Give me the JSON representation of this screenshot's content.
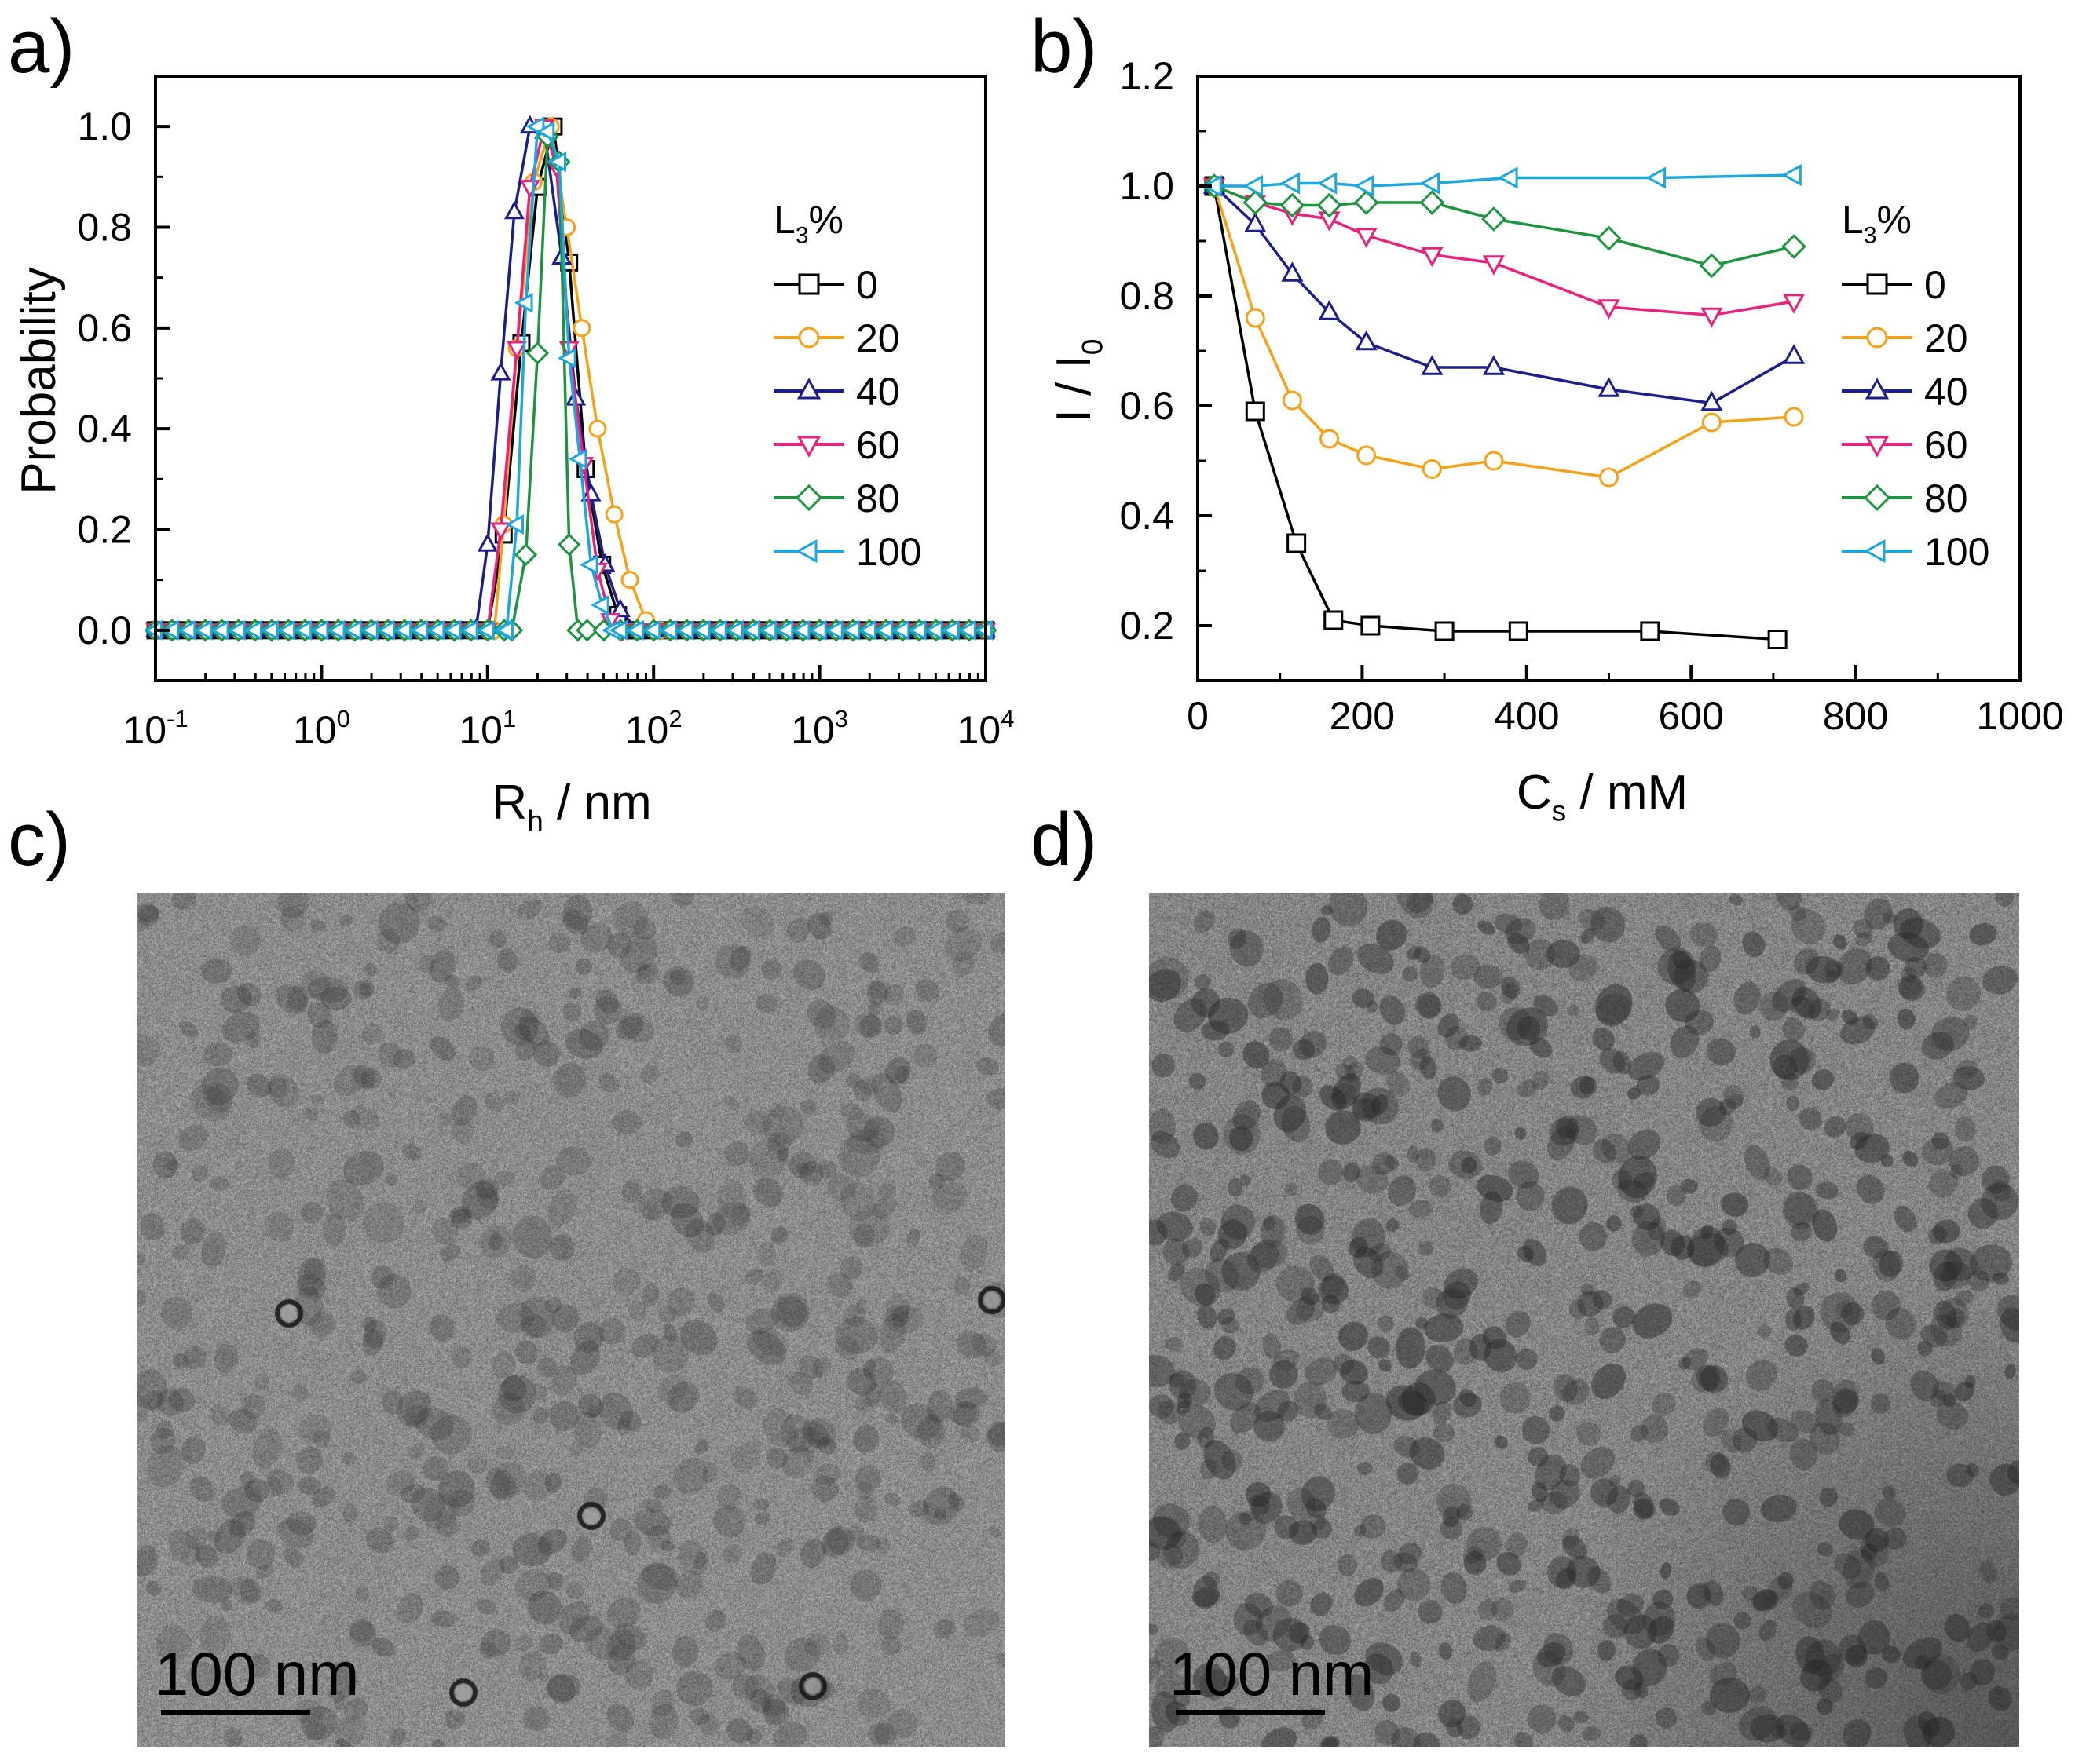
{
  "panels": {
    "a": "a)",
    "b": "b)",
    "c": "c)",
    "d": "d)"
  },
  "tem": {
    "c": {
      "scale_label": "100 nm",
      "tone": "#8c8c8c"
    },
    "d": {
      "scale_label": "100 nm",
      "tone": "#858585"
    }
  },
  "chart_data": [
    {
      "id": "a",
      "type": "line",
      "xscale": "log",
      "xlim": [
        0.1,
        10000
      ],
      "ylim": [
        -0.1,
        1.1
      ],
      "xticks": [
        0.1,
        1,
        10,
        100,
        1000,
        10000
      ],
      "xtick_labels": [
        {
          "base": "10",
          "exp": "-1"
        },
        {
          "base": "10",
          "exp": "0"
        },
        {
          "base": "10",
          "exp": "1"
        },
        {
          "base": "10",
          "exp": "2"
        },
        {
          "base": "10",
          "exp": "3"
        },
        {
          "base": "10",
          "exp": "4"
        }
      ],
      "yticks": [
        0.0,
        0.2,
        0.4,
        0.6,
        0.8,
        1.0
      ],
      "ytick_labels": [
        "0.0",
        "0.2",
        "0.4",
        "0.6",
        "0.8",
        "1.0"
      ],
      "xlabel": {
        "main": "R",
        "sub": "h",
        "rest": " / nm"
      },
      "ylabel": "Probability",
      "legend_title": {
        "main": "L",
        "sub": "3",
        "rest": "%"
      },
      "legend_position": "right",
      "series": [
        {
          "name": "0",
          "color": "#000000",
          "marker": "square",
          "peaks": [
            [
              10,
              0
            ],
            [
              12.5,
              0.19
            ],
            [
              16,
              0.57
            ],
            [
              20,
              0.88
            ],
            [
              25,
              1.0
            ],
            [
              31,
              0.73
            ],
            [
              39,
              0.32
            ],
            [
              49,
              0.13
            ],
            [
              61,
              0.03
            ],
            [
              77,
              0
            ]
          ]
        },
        {
          "name": "20",
          "color": "#f5a21b",
          "marker": "circle",
          "peaks": [
            [
              11,
              0
            ],
            [
              12.5,
              0.21
            ],
            [
              15,
              0.56
            ],
            [
              19,
              0.89
            ],
            [
              24,
              1.0
            ],
            [
              30,
              0.8
            ],
            [
              37,
              0.6
            ],
            [
              46,
              0.4
            ],
            [
              58,
              0.23
            ],
            [
              72,
              0.1
            ],
            [
              90,
              0.02
            ],
            [
              110,
              0
            ]
          ]
        },
        {
          "name": "40",
          "color": "#1c1f8a",
          "marker": "triangle-up",
          "peaks": [
            [
              8.5,
              0
            ],
            [
              10,
              0.17
            ],
            [
              12,
              0.51
            ],
            [
              14.5,
              0.83
            ],
            [
              18,
              1.0
            ],
            [
              22,
              0.99
            ],
            [
              28,
              0.74
            ],
            [
              34,
              0.46
            ],
            [
              42,
              0.27
            ],
            [
              51,
              0.13
            ],
            [
              63,
              0.04
            ],
            [
              80,
              0
            ]
          ]
        },
        {
          "name": "60",
          "color": "#e8237c",
          "marker": "triangle-down",
          "peaks": [
            [
              10,
              0
            ],
            [
              12,
              0.2
            ],
            [
              15,
              0.56
            ],
            [
              18,
              0.88
            ],
            [
              22,
              1.0
            ],
            [
              26,
              0.92
            ],
            [
              31,
              0.56
            ],
            [
              38,
              0.33
            ],
            [
              46,
              0.12
            ],
            [
              55,
              0.02
            ],
            [
              65,
              0
            ]
          ]
        },
        {
          "name": "80",
          "color": "#1e9440",
          "marker": "diamond",
          "peaks": [
            [
              14,
              0
            ],
            [
              17,
              0.15
            ],
            [
              20,
              0.55
            ],
            [
              23,
              0.98
            ],
            [
              27,
              0.93
            ],
            [
              31,
              0.17
            ],
            [
              35,
              0
            ]
          ]
        },
        {
          "name": "100",
          "color": "#1ea6df",
          "marker": "triangle-left",
          "peaks": [
            [
              13,
              0
            ],
            [
              15,
              0.21
            ],
            [
              17,
              0.65
            ],
            [
              20,
              1.0
            ],
            [
              23,
              0.99
            ],
            [
              27,
              0.93
            ],
            [
              31,
              0.54
            ],
            [
              36,
              0.34
            ],
            [
              42,
              0.13
            ],
            [
              49,
              0.05
            ],
            [
              57,
              0
            ]
          ]
        }
      ]
    },
    {
      "id": "b",
      "type": "line",
      "xlim": [
        0,
        1000
      ],
      "ylim": [
        0.1,
        1.2
      ],
      "xticks": [
        0,
        200,
        400,
        600,
        800,
        1000
      ],
      "xtick_labels": [
        "0",
        "200",
        "400",
        "600",
        "800",
        "1000"
      ],
      "yticks": [
        0.2,
        0.4,
        0.6,
        0.8,
        1.0,
        1.2
      ],
      "ytick_labels": [
        "0.2",
        "0.4",
        "0.6",
        "0.8",
        "1.0",
        "1.2"
      ],
      "xlabel": {
        "main": "C",
        "sub": "s",
        "rest": " / mM"
      },
      "ylabel": {
        "main": "I / I",
        "sub": "0",
        "rest": ""
      },
      "legend_title": {
        "main": "L",
        "sub": "3",
        "rest": "%"
      },
      "legend_position": "right",
      "series": [
        {
          "name": "0",
          "color": "#000000",
          "marker": "square",
          "x": [
            20,
            70,
            120,
            165,
            210,
            300,
            390,
            550,
            705
          ],
          "y": [
            1.0,
            0.59,
            0.35,
            0.21,
            0.2,
            0.19,
            0.19,
            0.19,
            0.175
          ]
        },
        {
          "name": "20",
          "color": "#f5a21b",
          "marker": "circle",
          "x": [
            20,
            70,
            115,
            160,
            205,
            285,
            360,
            500,
            625,
            725
          ],
          "y": [
            1.0,
            0.76,
            0.61,
            0.54,
            0.51,
            0.485,
            0.5,
            0.47,
            0.57,
            0.58
          ]
        },
        {
          "name": "40",
          "color": "#1c1f8a",
          "marker": "triangle-up",
          "x": [
            20,
            70,
            115,
            160,
            205,
            285,
            360,
            500,
            625,
            725
          ],
          "y": [
            1.0,
            0.93,
            0.84,
            0.77,
            0.715,
            0.67,
            0.67,
            0.63,
            0.605,
            0.69
          ]
        },
        {
          "name": "60",
          "color": "#e8237c",
          "marker": "triangle-down",
          "x": [
            20,
            70,
            115,
            160,
            205,
            285,
            360,
            500,
            625,
            725
          ],
          "y": [
            1.0,
            0.97,
            0.95,
            0.94,
            0.91,
            0.875,
            0.86,
            0.78,
            0.765,
            0.79
          ]
        },
        {
          "name": "80",
          "color": "#1e9440",
          "marker": "diamond",
          "x": [
            20,
            70,
            115,
            160,
            205,
            285,
            360,
            500,
            625,
            725
          ],
          "y": [
            1.0,
            0.97,
            0.965,
            0.965,
            0.97,
            0.97,
            0.94,
            0.905,
            0.855,
            0.89
          ]
        },
        {
          "name": "100",
          "color": "#1ea6df",
          "marker": "triangle-left",
          "x": [
            20,
            70,
            115,
            160,
            205,
            285,
            380,
            560,
            725
          ],
          "y": [
            1.0,
            1.0,
            1.005,
            1.005,
            1.0,
            1.005,
            1.015,
            1.015,
            1.02
          ]
        }
      ]
    }
  ]
}
